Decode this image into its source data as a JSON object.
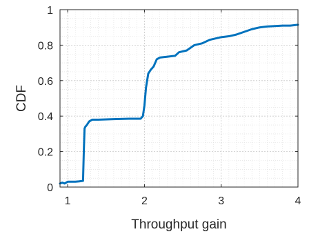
{
  "chart_data": {
    "type": "line",
    "title": "",
    "xlabel": "Throughput gain",
    "ylabel": "CDF",
    "xlim": [
      0.9,
      4
    ],
    "ylim": [
      0,
      1
    ],
    "xticks": [
      1,
      2,
      3,
      4
    ],
    "yticks": [
      0,
      0.2,
      0.4,
      0.6,
      0.8,
      1
    ],
    "xtick_labels": [
      "1",
      "2",
      "3",
      "4"
    ],
    "ytick_labels": [
      "0",
      "0.2",
      "0.4",
      "0.6",
      "0.8",
      "1"
    ],
    "grid": true,
    "minor_grid": true,
    "legend": "none",
    "colors": {
      "line": "#0072BD",
      "axis": "#262626",
      "grid": "#c8c8c8"
    },
    "series": [
      {
        "x": [
          0.9,
          0.93,
          0.96,
          1.0,
          1.05,
          1.1,
          1.15,
          1.2,
          1.21,
          1.22,
          1.23,
          1.25,
          1.28,
          1.32,
          1.4,
          1.6,
          1.8,
          1.95,
          1.98,
          2.0,
          2.02,
          2.05,
          2.08,
          2.12,
          2.16,
          2.2,
          2.3,
          2.4,
          2.45,
          2.55,
          2.65,
          2.75,
          2.85,
          3.0,
          3.1,
          3.2,
          3.3,
          3.4,
          3.5,
          3.6,
          3.8,
          3.9,
          4.0
        ],
        "y": [
          0.02,
          0.025,
          0.02,
          0.03,
          0.03,
          0.03,
          0.032,
          0.035,
          0.2,
          0.33,
          0.34,
          0.35,
          0.37,
          0.38,
          0.38,
          0.383,
          0.385,
          0.385,
          0.4,
          0.46,
          0.56,
          0.64,
          0.66,
          0.68,
          0.72,
          0.73,
          0.735,
          0.74,
          0.76,
          0.77,
          0.8,
          0.81,
          0.83,
          0.845,
          0.85,
          0.86,
          0.875,
          0.89,
          0.9,
          0.905,
          0.91,
          0.91,
          0.915
        ]
      }
    ]
  }
}
